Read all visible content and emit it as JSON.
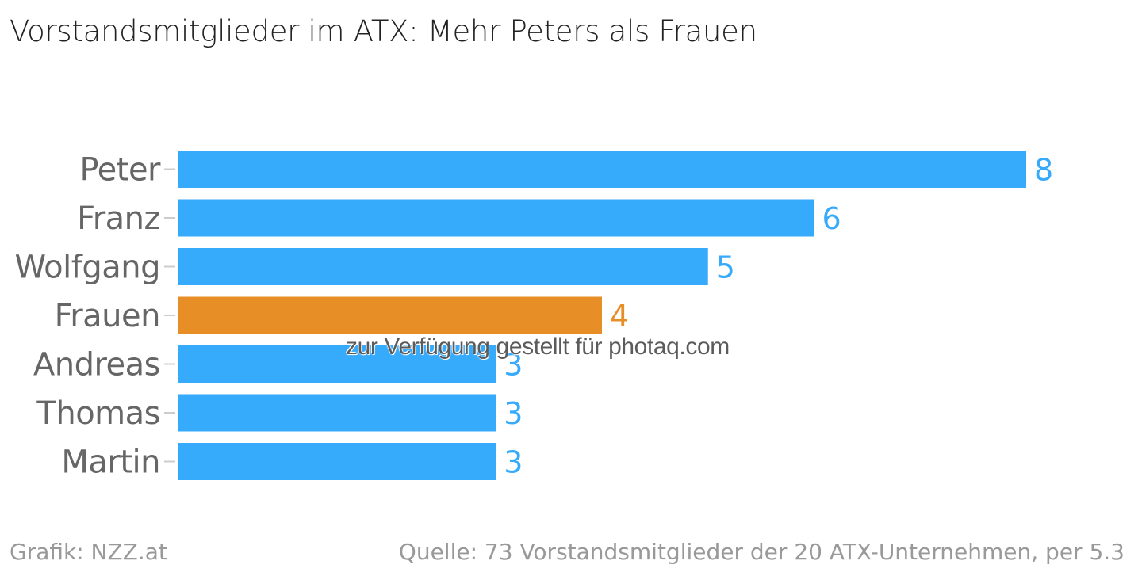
{
  "title": "Vorstandsmitglieder im ATX: Mehr Peters als Frauen",
  "watermark": "zur Verfügung gestellt für photaq.com",
  "footer": {
    "credit": "Grafik: NZZ.at",
    "source": "Quelle: 73 Vorstandsmitglieder der 20 ATX-Unternehmen, per 5.3"
  },
  "colors": {
    "default_bar": "#36AAFB",
    "highlight_bar": "#E88E27"
  },
  "chart_data": {
    "type": "bar",
    "orientation": "horizontal",
    "categories": [
      "Peter",
      "Franz",
      "Wolfgang",
      "Frauen",
      "Andreas",
      "Thomas",
      "Martin"
    ],
    "values": [
      8,
      6,
      5,
      4,
      3,
      3,
      3
    ],
    "highlight": [
      "Frauen"
    ],
    "xlim": [
      0,
      8
    ],
    "grid": false,
    "data_labels": true
  }
}
